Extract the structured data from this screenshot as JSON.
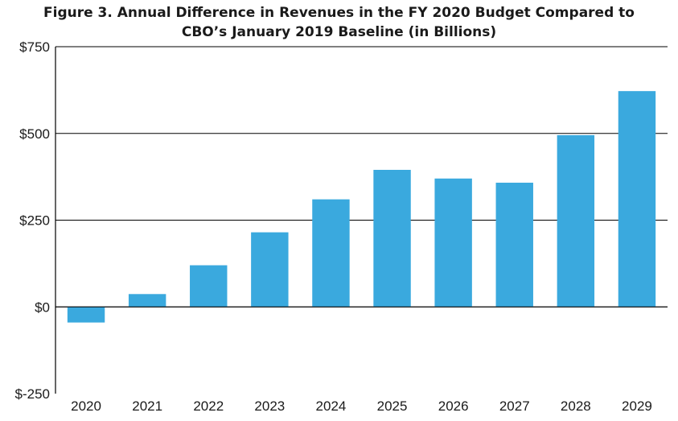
{
  "chart_data": {
    "type": "bar",
    "title_line1": "Figure 3. Annual Difference in Revenues in the FY 2020 Budget Compared to",
    "title_line2": "CBO’s January 2019 Baseline (in Billions)",
    "xlabel": "",
    "ylabel": "",
    "categories": [
      "2020",
      "2021",
      "2022",
      "2023",
      "2024",
      "2025",
      "2026",
      "2027",
      "2028",
      "2029"
    ],
    "values": [
      -45,
      37,
      120,
      215,
      310,
      395,
      370,
      358,
      495,
      622
    ],
    "ylim": [
      -250,
      750
    ],
    "yticks": [
      -250,
      0,
      250,
      500,
      750
    ],
    "ytick_labels": [
      "$-250",
      "$0",
      "$250",
      "$500",
      "$750"
    ],
    "grid": true,
    "bar_color": "#3aa9de"
  }
}
